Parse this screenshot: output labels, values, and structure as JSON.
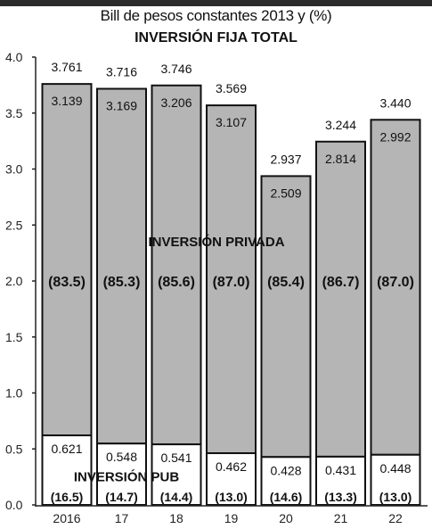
{
  "header": {
    "subtitle": "Bill de pesos constantes 2013 y (%)",
    "title": "INVERSIÓN FIJA TOTAL"
  },
  "chart_data": {
    "type": "bar",
    "stacked": true,
    "subtitle": "Bill de pesos constantes 2013 y (%)",
    "title": "INVERSIÓN FIJA TOTAL",
    "categories": [
      "2016",
      "17",
      "18",
      "19",
      "20",
      "21",
      "22"
    ],
    "ylim": [
      0,
      4.0
    ],
    "yticks": [
      "0.0",
      "0.5",
      "1.0",
      "1.5",
      "2.0",
      "2.5",
      "3.0",
      "3.5",
      "4.0"
    ],
    "totals": [
      "3.761",
      "3.716",
      "3.746",
      "3.569",
      "2.937",
      "3.244",
      "3.440"
    ],
    "series": [
      {
        "name": "INVERSIÓN PUB",
        "color": "#ffffff",
        "values": [
          0.621,
          0.548,
          0.541,
          0.462,
          0.428,
          0.431,
          0.448
        ],
        "labels": [
          "0.621",
          "0.548",
          "0.541",
          "0.462",
          "0.428",
          "0.431",
          "0.448"
        ],
        "shares": [
          "(16.5)",
          "(14.7)",
          "(14.4)",
          "(13.0)",
          "(14.6)",
          "(13.3)",
          "(13.0)"
        ]
      },
      {
        "name": "INVERSIÓN PRIVADA",
        "color": "#b5b5b5",
        "values": [
          3.139,
          3.169,
          3.206,
          3.107,
          2.509,
          2.814,
          2.992
        ],
        "labels": [
          "3.139",
          "3.169",
          "3.206",
          "3.107",
          "2.509",
          "2.814",
          "2.992"
        ],
        "shares": [
          "(83.5)",
          "(85.3)",
          "(85.6)",
          "(87.0)",
          "(85.4)",
          "(86.7)",
          "(87.0)"
        ]
      }
    ],
    "grid": false,
    "legend": "none"
  }
}
